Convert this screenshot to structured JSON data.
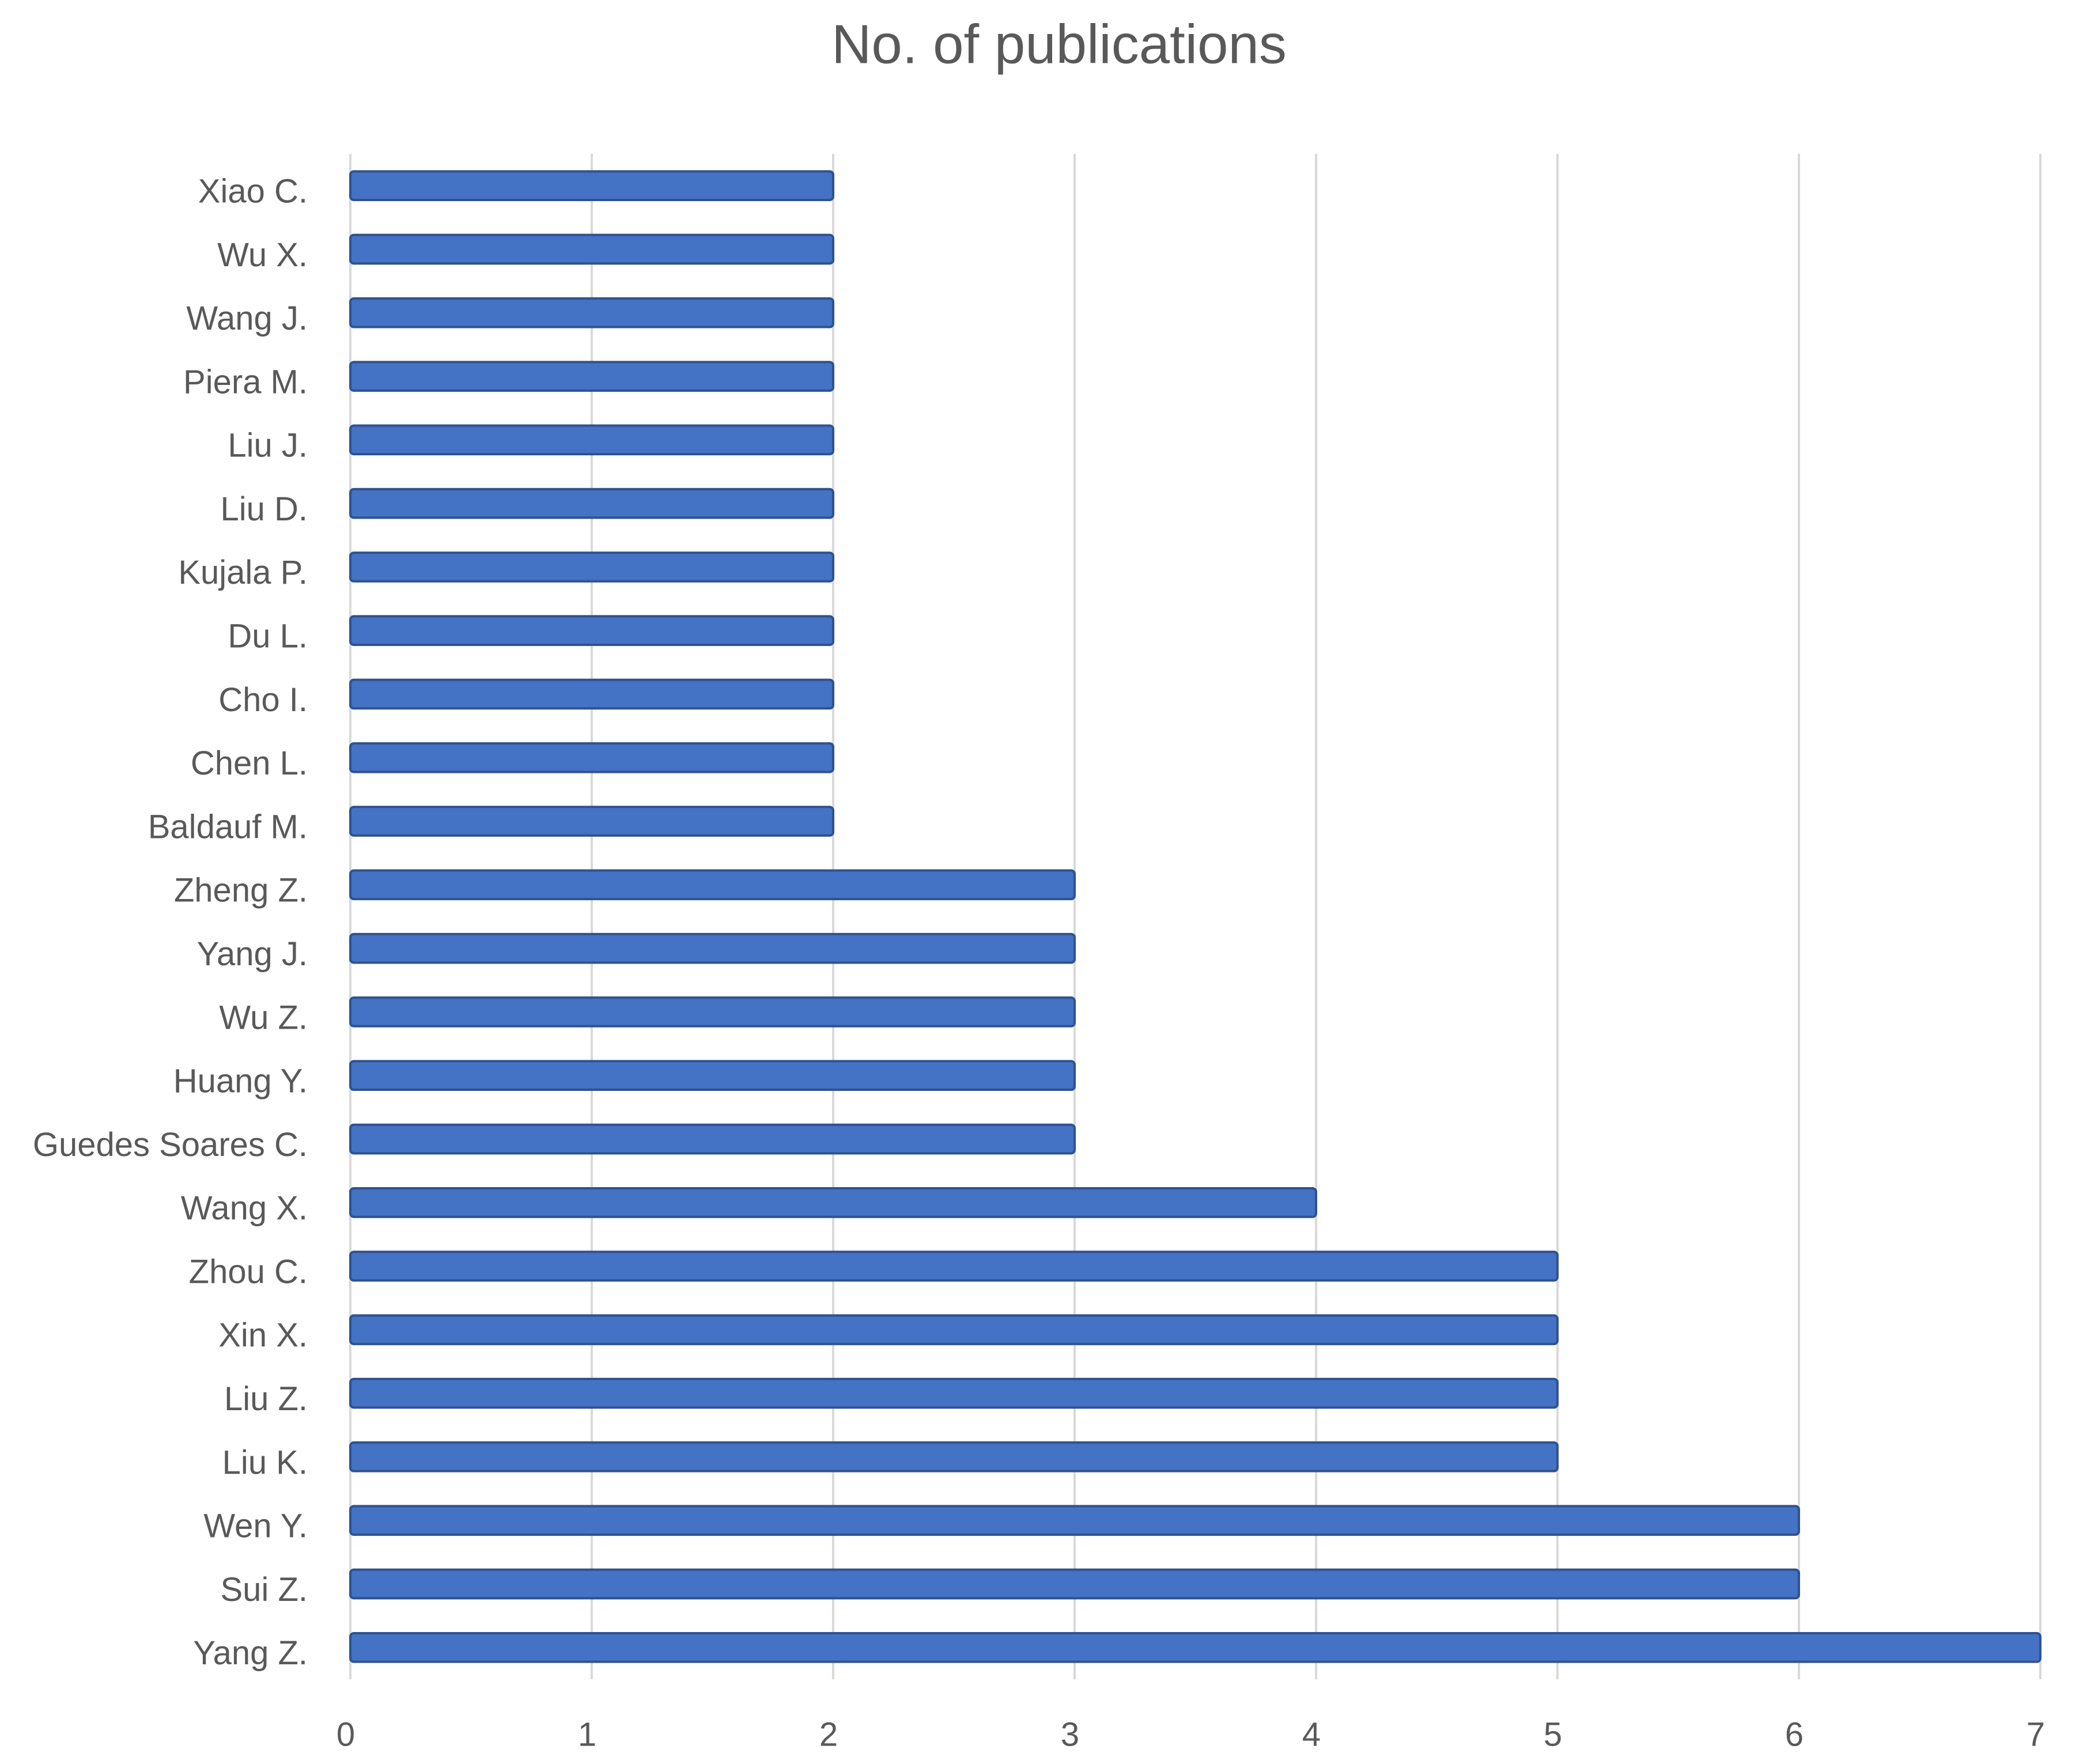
{
  "chart_data": {
    "type": "bar",
    "orientation": "horizontal",
    "title": "No. of publications",
    "categories": [
      "Yang Z.",
      "Sui Z.",
      "Wen Y.",
      "Liu K.",
      "Liu Z.",
      "Xin X.",
      "Zhou C.",
      "Wang X.",
      "Guedes Soares C.",
      "Huang Y.",
      "Wu Z.",
      "Yang J.",
      "Zheng Z.",
      "Baldauf M.",
      "Chen L.",
      "Cho I.",
      "Du L.",
      "Kujala P.",
      "Liu D.",
      "Liu J.",
      "Piera M.",
      "Wang J.",
      "Wu X.",
      "Xiao C."
    ],
    "values": [
      7,
      6,
      6,
      5,
      5,
      5,
      5,
      4,
      3,
      3,
      3,
      3,
      3,
      2,
      2,
      2,
      2,
      2,
      2,
      2,
      2,
      2,
      2,
      2
    ],
    "color": "#4472c4",
    "xlim": [
      0,
      7
    ],
    "xticks": [
      0,
      1,
      2,
      3,
      4,
      5,
      6,
      7
    ],
    "grid": true
  }
}
